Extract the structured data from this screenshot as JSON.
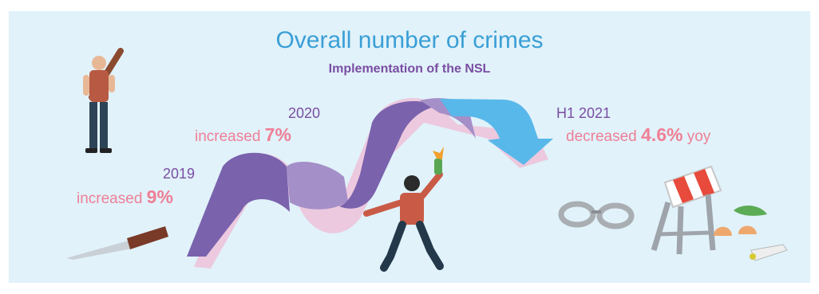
{
  "header": {
    "title": "Overall number of crimes",
    "subtitle": "Implementation of the NSL"
  },
  "periods": [
    {
      "period": "2019",
      "prefix": "increased ",
      "value": "9%",
      "suffix": ""
    },
    {
      "period": "2020",
      "prefix": "increased ",
      "value": "7%",
      "suffix": ""
    },
    {
      "period": "H1 2021",
      "prefix": "decreased ",
      "value": "4.6%",
      "suffix": " yoy"
    }
  ],
  "colors": {
    "background": "#e1f2fa",
    "title": "#3a9fd6",
    "subtitle": "#7a4ea3",
    "increase_text": "#ef7f96",
    "ribbon_purple": "#7a62ad",
    "ribbon_light_purple": "#a58fc8",
    "ribbon_shadow": "#ecc9de",
    "arrow_blue": "#58b8ea"
  },
  "icons": [
    "thug-with-bat-icon",
    "knife-icon",
    "rioter-with-molotov-icon",
    "handcuffs-icon",
    "broken-barricade-icon",
    "egg-shell-icon",
    "vegetable-icon"
  ]
}
